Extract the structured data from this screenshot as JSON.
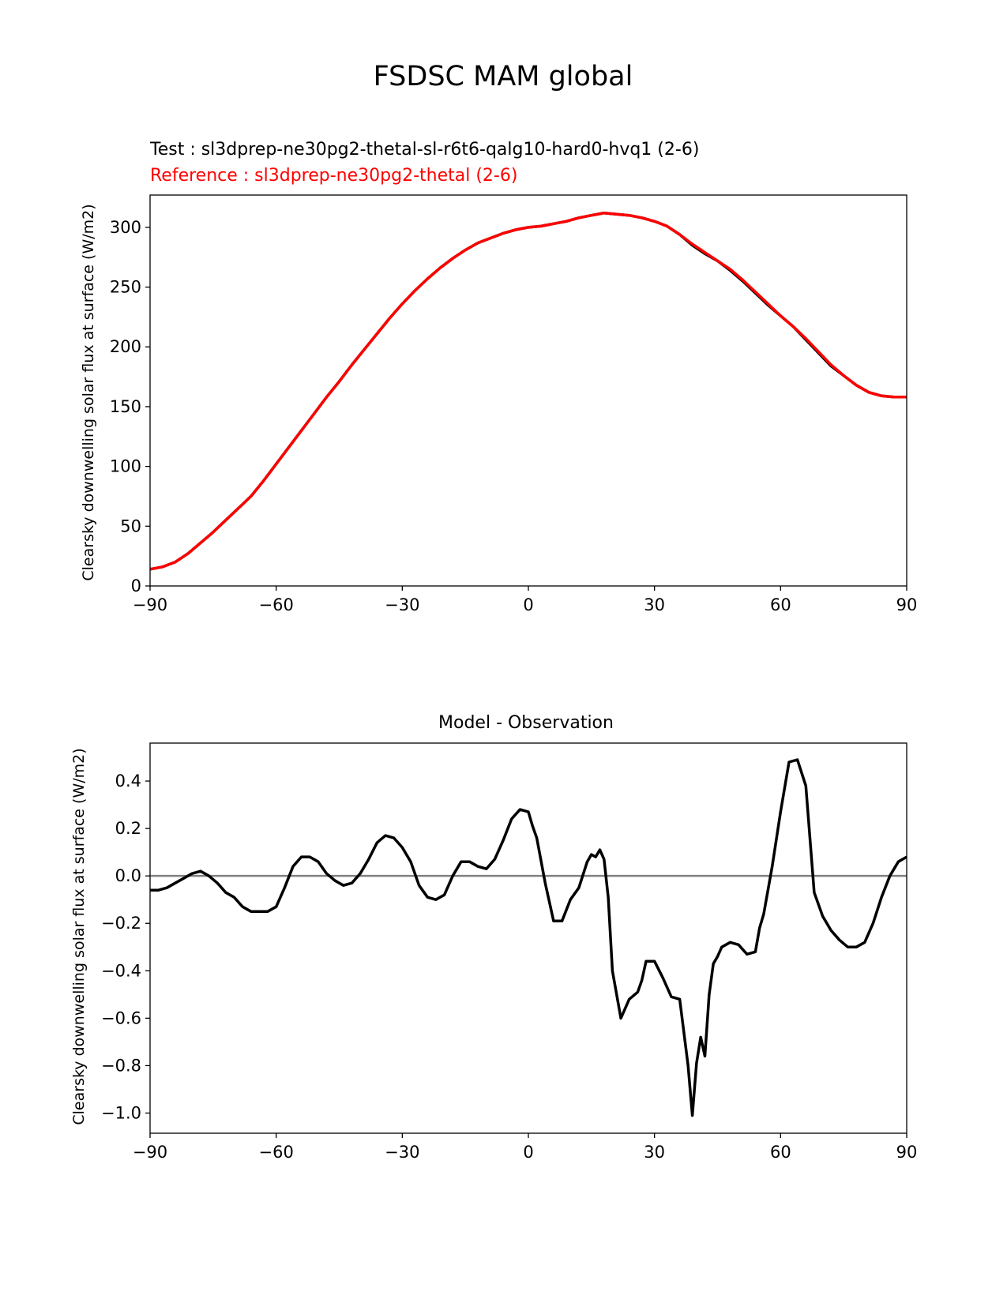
{
  "figure": {
    "suptitle": "FSDSC MAM global"
  },
  "chart_data": [
    {
      "type": "line",
      "title_test": "Test : sl3dprep-ne30pg2-thetal-sl-r6t6-qalg10-hard0-hvq1 (2-6)",
      "title_reference": "Reference : sl3dprep-ne30pg2-thetal (2-6)",
      "title_colors": {
        "test": "#000000",
        "reference": "#ff0000"
      },
      "xlabel": "",
      "ylabel": "Clearsky downwelling solar flux at surface (W/m2)",
      "xlim": [
        -90,
        90
      ],
      "ylim": [
        0,
        327
      ],
      "xticks": [
        -90,
        -60,
        -30,
        0,
        30,
        60,
        90
      ],
      "xtick_labels": [
        "−90",
        "−60",
        "−30",
        "0",
        "30",
        "60",
        "90"
      ],
      "yticks": [
        0,
        50,
        100,
        150,
        200,
        250,
        300
      ],
      "ytick_labels": [
        "0",
        "50",
        "100",
        "150",
        "200",
        "250",
        "300"
      ],
      "grid": false,
      "x": [
        -90,
        -87,
        -84,
        -81,
        -78,
        -75,
        -72,
        -69,
        -66,
        -63,
        -60,
        -57,
        -54,
        -51,
        -48,
        -45,
        -42,
        -39,
        -36,
        -33,
        -30,
        -27,
        -24,
        -21,
        -18,
        -15,
        -12,
        -9,
        -6,
        -3,
        0,
        3,
        6,
        9,
        12,
        15,
        18,
        21,
        24,
        27,
        30,
        33,
        36,
        39,
        42,
        45,
        48,
        51,
        54,
        57,
        60,
        63,
        66,
        69,
        72,
        75,
        78,
        81,
        84,
        87,
        90
      ],
      "series": [
        {
          "name": "Test",
          "color": "#000000",
          "values": [
            14,
            16,
            20,
            27,
            36,
            45,
            55,
            65,
            75,
            88,
            102,
            116,
            130,
            144,
            158,
            171,
            185,
            198,
            211,
            224,
            236,
            247,
            257,
            266,
            274,
            281,
            287,
            291,
            295,
            298,
            300,
            301,
            303,
            305,
            308,
            310,
            312,
            311,
            310,
            308,
            305,
            301,
            294,
            285,
            278,
            272,
            264,
            255,
            245,
            235,
            226,
            217,
            206,
            195,
            184,
            176,
            168,
            162,
            159,
            158,
            158
          ]
        },
        {
          "name": "Reference",
          "color": "#ff0000",
          "values": [
            14,
            16,
            20,
            27,
            36,
            45,
            55,
            65,
            75,
            88,
            102,
            116,
            130,
            144,
            158,
            171,
            185,
            198,
            211,
            224,
            236,
            247,
            257,
            266,
            274,
            281,
            287,
            291,
            295,
            298,
            300,
            301,
            303,
            305,
            308,
            310,
            312,
            311,
            310,
            308,
            305,
            301,
            294,
            286,
            279,
            272,
            265,
            256,
            246,
            236,
            226,
            217,
            207,
            196,
            185,
            176,
            168,
            162,
            159,
            158,
            158
          ]
        }
      ]
    },
    {
      "type": "line",
      "title": "Model - Observation",
      "xlabel": "",
      "ylabel": "Clearsky downwelling solar flux at surface (W/m2)",
      "xlim": [
        -90,
        90
      ],
      "ylim": [
        -1.085,
        0.56
      ],
      "xticks": [
        -90,
        -60,
        -30,
        0,
        30,
        60,
        90
      ],
      "xtick_labels": [
        "−90",
        "−60",
        "−30",
        "0",
        "30",
        "60",
        "90"
      ],
      "yticks": [
        -1.0,
        -0.8,
        -0.6,
        -0.4,
        -0.2,
        0.0,
        0.2,
        0.4
      ],
      "ytick_labels": [
        "−1.0",
        "−0.8",
        "−0.6",
        "−0.4",
        "−0.2",
        "0.0",
        "0.2",
        "0.4"
      ],
      "grid": false,
      "zero_line": {
        "value": 0,
        "color": "#808080"
      },
      "x": [
        -90,
        -88,
        -86,
        -84,
        -82,
        -80,
        -78,
        -76,
        -74,
        -72,
        -70,
        -68,
        -66,
        -64,
        -62,
        -60,
        -58,
        -56,
        -54,
        -52,
        -50,
        -48,
        -46,
        -44,
        -42,
        -40,
        -38,
        -36,
        -34,
        -32,
        -30,
        -28,
        -26,
        -24,
        -22,
        -20,
        -18,
        -16,
        -14,
        -12,
        -10,
        -8,
        -6,
        -4,
        -2,
        0,
        1,
        2,
        4,
        6,
        8,
        10,
        12,
        14,
        15,
        16,
        17,
        18,
        19,
        20,
        22,
        24,
        26,
        27,
        28,
        30,
        32,
        34,
        36,
        38,
        39,
        40,
        41,
        42,
        43,
        44,
        45,
        46,
        48,
        50,
        52,
        54,
        55,
        56,
        58,
        60,
        62,
        64,
        66,
        68,
        70,
        72,
        74,
        76,
        78,
        80,
        82,
        84,
        86,
        88,
        90
      ],
      "series": [
        {
          "name": "Model - Observation",
          "color": "#000000",
          "values": [
            -0.06,
            -0.06,
            -0.05,
            -0.03,
            -0.01,
            0.01,
            0.02,
            0.0,
            -0.03,
            -0.07,
            -0.09,
            -0.13,
            -0.15,
            -0.15,
            -0.15,
            -0.13,
            -0.05,
            0.04,
            0.08,
            0.08,
            0.06,
            0.01,
            -0.02,
            -0.04,
            -0.03,
            0.01,
            0.07,
            0.14,
            0.17,
            0.16,
            0.12,
            0.06,
            -0.04,
            -0.09,
            -0.1,
            -0.08,
            0.0,
            0.06,
            0.06,
            0.04,
            0.03,
            0.07,
            0.15,
            0.24,
            0.28,
            0.27,
            0.21,
            0.16,
            -0.03,
            -0.19,
            -0.19,
            -0.1,
            -0.05,
            0.06,
            0.09,
            0.08,
            0.11,
            0.07,
            -0.09,
            -0.4,
            -0.6,
            -0.52,
            -0.49,
            -0.44,
            -0.36,
            -0.36,
            -0.43,
            -0.51,
            -0.52,
            -0.8,
            -1.01,
            -0.79,
            -0.68,
            -0.76,
            -0.5,
            -0.37,
            -0.34,
            -0.3,
            -0.28,
            -0.29,
            -0.33,
            -0.32,
            -0.22,
            -0.16,
            0.04,
            0.27,
            0.48,
            0.49,
            0.38,
            -0.07,
            -0.17,
            -0.23,
            -0.27,
            -0.3,
            -0.3,
            -0.28,
            -0.2,
            -0.09,
            0.0,
            0.06,
            0.08
          ]
        }
      ]
    }
  ]
}
